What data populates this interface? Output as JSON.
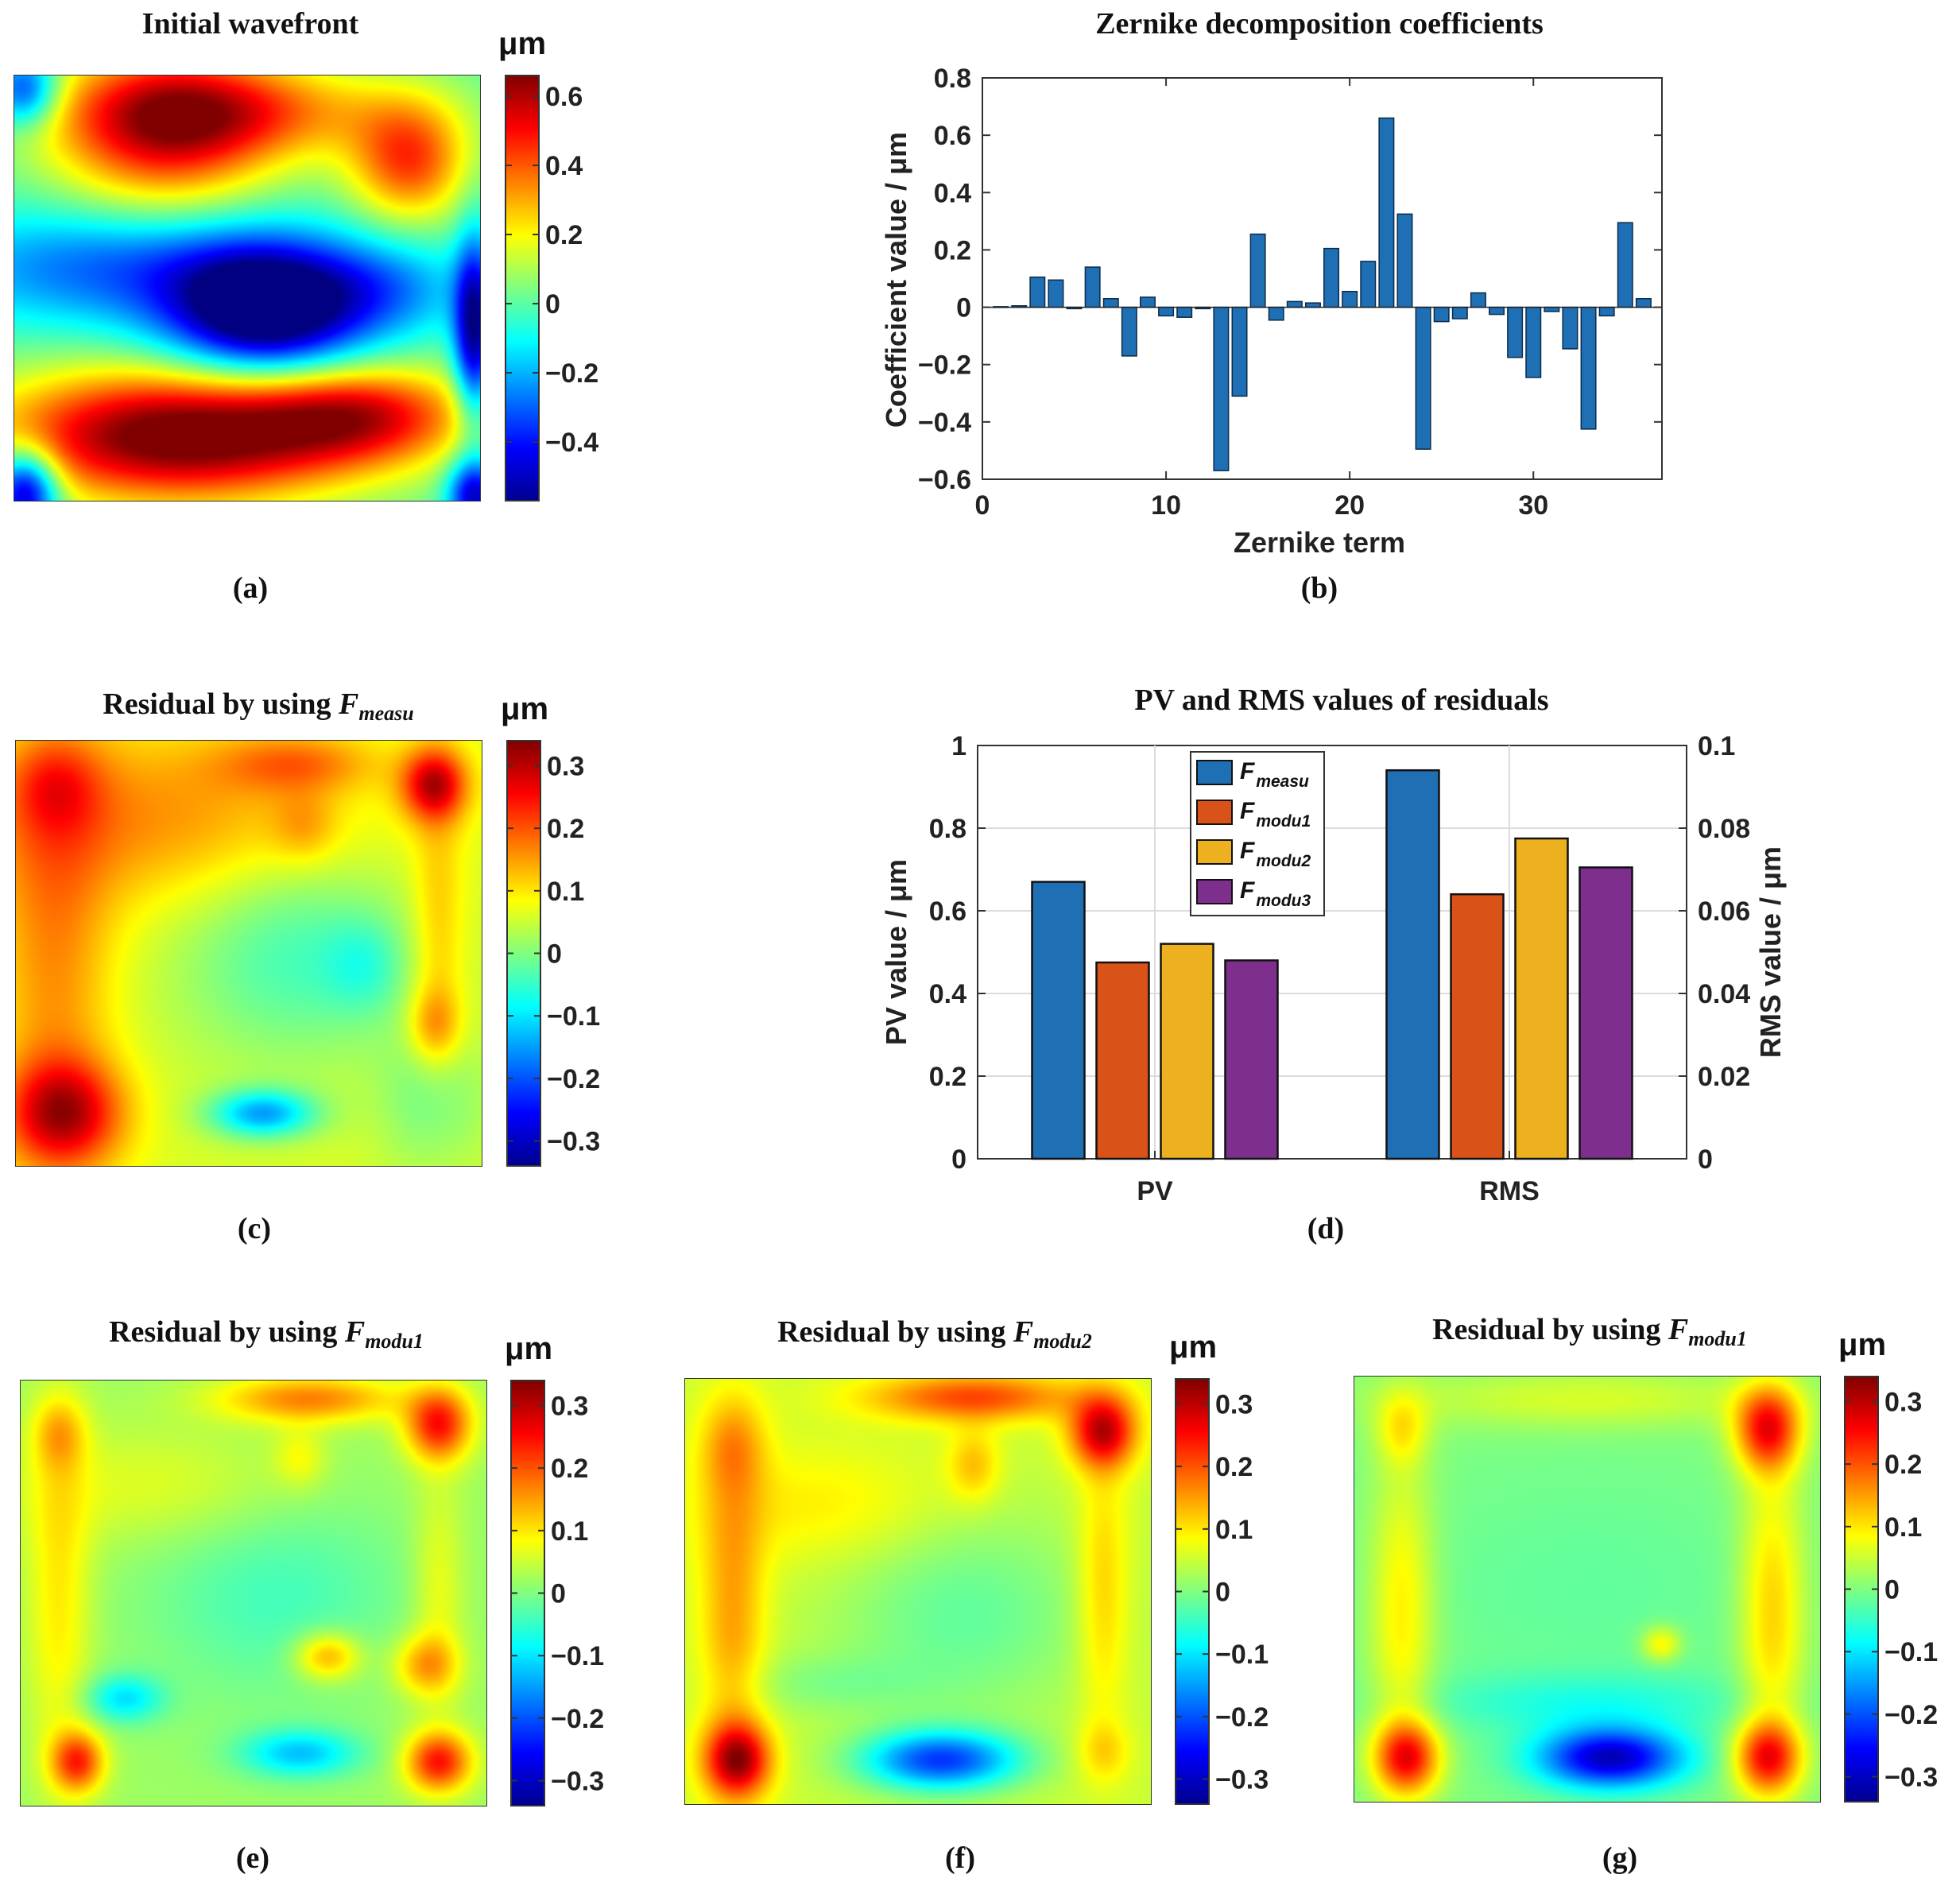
{
  "chart_data": [
    {
      "id": "a",
      "type": "heatmap",
      "title": "Initial wavefront",
      "caption": "(a)",
      "colorbar": {
        "unit": "μm",
        "ticks": [
          "0.6",
          "0.4",
          "0.2",
          "0",
          "−0.2",
          "−0.4"
        ],
        "tick_values": [
          0.6,
          0.4,
          0.2,
          0,
          -0.2,
          -0.4
        ],
        "range": [
          -0.57,
          0.66
        ]
      },
      "blobs": [
        {
          "x": 0.32,
          "y": 0.12,
          "sx": 0.17,
          "sy": 0.14,
          "a": 0.5
        },
        {
          "x": 0.85,
          "y": 0.2,
          "sx": 0.09,
          "sy": 0.1,
          "a": 0.42
        },
        {
          "x": 0.5,
          "y": 0.08,
          "sx": 0.25,
          "sy": 0.08,
          "a": 0.3
        },
        {
          "x": 0.54,
          "y": 0.55,
          "sx": 0.15,
          "sy": 0.11,
          "a": -0.72
        },
        {
          "x": 0.2,
          "y": 0.45,
          "sx": 0.26,
          "sy": 0.1,
          "a": -0.3
        },
        {
          "x": 0.8,
          "y": 0.5,
          "sx": 0.13,
          "sy": 0.08,
          "a": -0.2
        },
        {
          "x": 0.35,
          "y": 0.85,
          "sx": 0.28,
          "sy": 0.11,
          "a": 0.72
        },
        {
          "x": 0.75,
          "y": 0.8,
          "sx": 0.17,
          "sy": 0.08,
          "a": 0.42
        },
        {
          "x": 0.02,
          "y": 0.98,
          "sx": 0.05,
          "sy": 0.07,
          "a": -0.6
        },
        {
          "x": 0.02,
          "y": 0.03,
          "sx": 0.05,
          "sy": 0.06,
          "a": -0.4
        },
        {
          "x": 0.99,
          "y": 0.6,
          "sx": 0.03,
          "sy": 0.15,
          "a": -0.55
        },
        {
          "x": 0.99,
          "y": 0.99,
          "sx": 0.04,
          "sy": 0.06,
          "a": -0.5
        }
      ]
    },
    {
      "id": "b",
      "type": "bar",
      "title": "Zernike decomposition coefficients",
      "caption": "(b)",
      "xlabel": "Zernike term",
      "ylabel": "Coefficient value / μm",
      "xlim": [
        0,
        37
      ],
      "ylim": [
        -0.6,
        0.8
      ],
      "xticks": [
        "0",
        "10",
        "20",
        "30"
      ],
      "xtick_values": [
        0,
        10,
        20,
        30
      ],
      "yticks": [
        "0.8",
        "0.6",
        "0.4",
        "0.2",
        "0",
        "−0.2",
        "−0.4",
        "−0.6"
      ],
      "ytick_values": [
        0.8,
        0.6,
        0.4,
        0.2,
        0,
        -0.2,
        -0.4,
        -0.6
      ],
      "x": [
        1,
        2,
        3,
        4,
        5,
        6,
        7,
        8,
        9,
        10,
        11,
        12,
        13,
        14,
        15,
        16,
        17,
        18,
        19,
        20,
        21,
        22,
        23,
        24,
        25,
        26,
        27,
        28,
        29,
        30,
        31,
        32,
        33,
        34,
        35,
        36
      ],
      "values": [
        0.002,
        0.005,
        0.105,
        0.095,
        -0.005,
        0.14,
        0.03,
        -0.17,
        0.035,
        -0.03,
        -0.035,
        -0.005,
        -0.57,
        -0.31,
        0.255,
        -0.045,
        0.02,
        0.015,
        0.205,
        0.055,
        0.16,
        0.66,
        0.325,
        -0.495,
        -0.05,
        -0.04,
        0.05,
        -0.025,
        -0.175,
        -0.245,
        -0.015,
        -0.145,
        -0.425,
        -0.03,
        0.295,
        0.03
      ],
      "color": "#1f6fb5"
    },
    {
      "id": "c",
      "type": "heatmap",
      "title_prefix": "Residual by using ",
      "title_symbol": "F",
      "title_sub": "measu",
      "caption": "(c)",
      "colorbar": {
        "unit": "μm",
        "ticks": [
          "0.3",
          "0.2",
          "0.1",
          "0",
          "−0.1",
          "−0.2",
          "−0.3"
        ],
        "tick_values": [
          0.3,
          0.2,
          0.1,
          0,
          -0.1,
          -0.2,
          -0.3
        ],
        "range": [
          -0.34,
          0.34
        ]
      },
      "baseline": 0.06,
      "blobs": [
        {
          "x": 0.3,
          "y": 0.18,
          "sx": 0.3,
          "sy": 0.15,
          "a": 0.1
        },
        {
          "x": 0.08,
          "y": 0.5,
          "sx": 0.09,
          "sy": 0.35,
          "a": 0.1
        },
        {
          "x": 0.08,
          "y": 0.1,
          "sx": 0.07,
          "sy": 0.08,
          "a": 0.09
        },
        {
          "x": 0.6,
          "y": 0.05,
          "sx": 0.12,
          "sy": 0.05,
          "a": 0.1
        },
        {
          "x": 0.62,
          "y": 0.2,
          "sx": 0.05,
          "sy": 0.06,
          "a": 0.06
        },
        {
          "x": 0.9,
          "y": 0.1,
          "sx": 0.05,
          "sy": 0.06,
          "a": 0.22
        },
        {
          "x": 0.91,
          "y": 0.45,
          "sx": 0.04,
          "sy": 0.25,
          "a": 0.07
        },
        {
          "x": 0.9,
          "y": 0.67,
          "sx": 0.04,
          "sy": 0.06,
          "a": 0.09
        },
        {
          "x": 0.6,
          "y": 0.5,
          "sx": 0.18,
          "sy": 0.18,
          "a": -0.1
        },
        {
          "x": 0.75,
          "y": 0.53,
          "sx": 0.06,
          "sy": 0.08,
          "a": -0.06
        },
        {
          "x": 0.1,
          "y": 0.88,
          "sx": 0.09,
          "sy": 0.09,
          "a": 0.22
        },
        {
          "x": 0.53,
          "y": 0.88,
          "sx": 0.08,
          "sy": 0.04,
          "a": -0.2
        },
        {
          "x": 0.9,
          "y": 0.85,
          "sx": 0.08,
          "sy": 0.12,
          "a": -0.07
        }
      ]
    },
    {
      "id": "d",
      "type": "bar",
      "title": "PV and RMS values of residuals",
      "caption": "(d)",
      "categories": [
        "PV",
        "RMS"
      ],
      "ylabel": "PV value / μm",
      "ylabel_right": "RMS value / μm",
      "ylim": [
        0,
        1
      ],
      "ylim_right": [
        0,
        0.1
      ],
      "yticks": [
        "1",
        "0.8",
        "0.6",
        "0.4",
        "0.2",
        "0"
      ],
      "ytick_values": [
        1,
        0.8,
        0.6,
        0.4,
        0.2,
        0
      ],
      "yticks_right": [
        "0.1",
        "0.08",
        "0.06",
        "0.04",
        "0.02",
        "0"
      ],
      "ytick_values_right": [
        0.1,
        0.08,
        0.06,
        0.04,
        0.02,
        0
      ],
      "grid": true,
      "legend_position": "top-center",
      "series": [
        {
          "symbol": "F",
          "sub": "measu",
          "color": "#1f6fb5",
          "values": [
            0.67,
            0.094
          ]
        },
        {
          "symbol": "F",
          "sub": "modu1",
          "color": "#d95319",
          "values": [
            0.475,
            0.064
          ]
        },
        {
          "symbol": "F",
          "sub": "modu2",
          "color": "#edb120",
          "values": [
            0.52,
            0.0775
          ]
        },
        {
          "symbol": "F",
          "sub": "modu3",
          "color": "#7e2f8e",
          "values": [
            0.48,
            0.0705
          ]
        }
      ]
    },
    {
      "id": "e",
      "type": "heatmap",
      "title_prefix": "Residual by using ",
      "title_symbol": "F",
      "title_sub": "modu1",
      "caption": "(e)",
      "colorbar": {
        "unit": "μm",
        "ticks": [
          "0.3",
          "0.2",
          "0.1",
          "0",
          "−0.1",
          "−0.2",
          "−0.3"
        ],
        "tick_values": [
          0.3,
          0.2,
          0.1,
          0,
          -0.1,
          -0.2,
          -0.3
        ],
        "range": [
          -0.34,
          0.34
        ]
      },
      "baseline": 0.02,
      "blobs": [
        {
          "x": 0.62,
          "y": 0.04,
          "sx": 0.14,
          "sy": 0.04,
          "a": 0.15
        },
        {
          "x": 0.9,
          "y": 0.1,
          "sx": 0.05,
          "sy": 0.06,
          "a": 0.22
        },
        {
          "x": 0.08,
          "y": 0.12,
          "sx": 0.04,
          "sy": 0.06,
          "a": 0.09
        },
        {
          "x": 0.08,
          "y": 0.5,
          "sx": 0.05,
          "sy": 0.3,
          "a": 0.08
        },
        {
          "x": 0.3,
          "y": 0.25,
          "sx": 0.22,
          "sy": 0.1,
          "a": 0.05
        },
        {
          "x": 0.6,
          "y": 0.18,
          "sx": 0.04,
          "sy": 0.05,
          "a": 0.06
        },
        {
          "x": 0.9,
          "y": 0.5,
          "sx": 0.04,
          "sy": 0.2,
          "a": 0.06
        },
        {
          "x": 0.66,
          "y": 0.65,
          "sx": 0.05,
          "sy": 0.04,
          "a": 0.14
        },
        {
          "x": 0.87,
          "y": 0.67,
          "sx": 0.05,
          "sy": 0.05,
          "a": 0.12
        },
        {
          "x": 0.55,
          "y": 0.5,
          "sx": 0.2,
          "sy": 0.18,
          "a": -0.06
        },
        {
          "x": 0.22,
          "y": 0.75,
          "sx": 0.06,
          "sy": 0.04,
          "a": -0.12
        },
        {
          "x": 0.6,
          "y": 0.88,
          "sx": 0.09,
          "sy": 0.04,
          "a": -0.14
        },
        {
          "x": 0.12,
          "y": 0.9,
          "sx": 0.04,
          "sy": 0.05,
          "a": 0.2
        },
        {
          "x": 0.9,
          "y": 0.9,
          "sx": 0.05,
          "sy": 0.05,
          "a": 0.22
        }
      ]
    },
    {
      "id": "f",
      "type": "heatmap",
      "title_prefix": "Residual by using ",
      "title_symbol": "F",
      "title_sub": "modu2",
      "caption": "(f)",
      "colorbar": {
        "unit": "μm",
        "ticks": [
          "0.3",
          "0.2",
          "0.1",
          "0",
          "−0.1",
          "−0.2",
          "−0.3"
        ],
        "tick_values": [
          0.3,
          0.2,
          0.1,
          0,
          -0.1,
          -0.2,
          -0.3
        ],
        "range": [
          -0.34,
          0.34
        ]
      },
      "baseline": 0.05,
      "blobs": [
        {
          "x": 0.62,
          "y": 0.04,
          "sx": 0.16,
          "sy": 0.04,
          "a": 0.16
        },
        {
          "x": 0.9,
          "y": 0.12,
          "sx": 0.05,
          "sy": 0.06,
          "a": 0.24
        },
        {
          "x": 0.1,
          "y": 0.15,
          "sx": 0.05,
          "sy": 0.08,
          "a": 0.08
        },
        {
          "x": 0.1,
          "y": 0.55,
          "sx": 0.05,
          "sy": 0.28,
          "a": 0.1
        },
        {
          "x": 0.3,
          "y": 0.3,
          "sx": 0.2,
          "sy": 0.1,
          "a": 0.05
        },
        {
          "x": 0.62,
          "y": 0.2,
          "sx": 0.04,
          "sy": 0.06,
          "a": 0.08
        },
        {
          "x": 0.9,
          "y": 0.5,
          "sx": 0.04,
          "sy": 0.22,
          "a": 0.08
        },
        {
          "x": 0.6,
          "y": 0.55,
          "sx": 0.2,
          "sy": 0.18,
          "a": -0.07
        },
        {
          "x": 0.3,
          "y": 0.72,
          "sx": 0.15,
          "sy": 0.05,
          "a": -0.04
        },
        {
          "x": 0.55,
          "y": 0.9,
          "sx": 0.12,
          "sy": 0.05,
          "a": -0.26
        },
        {
          "x": 0.11,
          "y": 0.9,
          "sx": 0.05,
          "sy": 0.06,
          "a": 0.25
        },
        {
          "x": 0.9,
          "y": 0.88,
          "sx": 0.04,
          "sy": 0.05,
          "a": 0.06
        }
      ]
    },
    {
      "id": "g",
      "type": "heatmap",
      "title_prefix": "Residual by using ",
      "title_symbol": "F",
      "title_sub": "modu1",
      "caption": "(g)",
      "colorbar": {
        "unit": "μm",
        "ticks": [
          "0.3",
          "0.2",
          "0.1",
          "0",
          "−0.1",
          "−0.2",
          "−0.3"
        ],
        "tick_values": [
          0.3,
          0.2,
          0.1,
          0,
          -0.1,
          -0.2,
          -0.3
        ],
        "range": [
          -0.34,
          0.34
        ]
      },
      "baseline": 0.0,
      "blobs": [
        {
          "x": 0.89,
          "y": 0.12,
          "sx": 0.05,
          "sy": 0.07,
          "a": 0.24
        },
        {
          "x": 0.1,
          "y": 0.12,
          "sx": 0.04,
          "sy": 0.06,
          "a": 0.08
        },
        {
          "x": 0.1,
          "y": 0.55,
          "sx": 0.05,
          "sy": 0.25,
          "a": 0.1
        },
        {
          "x": 0.9,
          "y": 0.55,
          "sx": 0.05,
          "sy": 0.25,
          "a": 0.12
        },
        {
          "x": 0.5,
          "y": 0.05,
          "sx": 0.3,
          "sy": 0.05,
          "a": 0.06
        },
        {
          "x": 0.5,
          "y": 0.5,
          "sx": 0.3,
          "sy": 0.2,
          "a": -0.02
        },
        {
          "x": 0.66,
          "y": 0.63,
          "sx": 0.03,
          "sy": 0.03,
          "a": 0.1
        },
        {
          "x": 0.5,
          "y": 0.77,
          "sx": 0.25,
          "sy": 0.05,
          "a": -0.06
        },
        {
          "x": 0.55,
          "y": 0.9,
          "sx": 0.11,
          "sy": 0.05,
          "a": -0.3
        },
        {
          "x": 0.11,
          "y": 0.9,
          "sx": 0.05,
          "sy": 0.06,
          "a": 0.24
        },
        {
          "x": 0.89,
          "y": 0.9,
          "sx": 0.05,
          "sy": 0.06,
          "a": 0.23
        }
      ]
    }
  ]
}
